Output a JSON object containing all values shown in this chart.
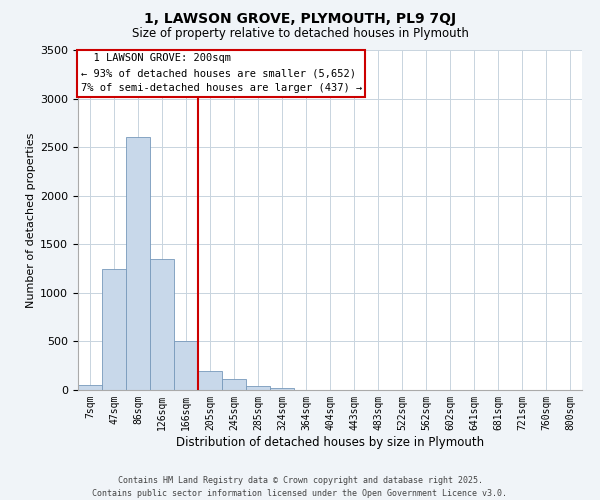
{
  "title_line1": "1, LAWSON GROVE, PLYMOUTH, PL9 7QJ",
  "title_line2": "Size of property relative to detached houses in Plymouth",
  "xlabel": "Distribution of detached houses by size in Plymouth",
  "ylabel": "Number of detached properties",
  "bin_labels": [
    "7sqm",
    "47sqm",
    "86sqm",
    "126sqm",
    "166sqm",
    "205sqm",
    "245sqm",
    "285sqm",
    "324sqm",
    "364sqm",
    "404sqm",
    "443sqm",
    "483sqm",
    "522sqm",
    "562sqm",
    "602sqm",
    "641sqm",
    "681sqm",
    "721sqm",
    "760sqm",
    "800sqm"
  ],
  "bin_values": [
    50,
    1250,
    2600,
    1350,
    500,
    200,
    110,
    40,
    20,
    0,
    0,
    0,
    0,
    0,
    0,
    0,
    0,
    0,
    0,
    0,
    0
  ],
  "bar_color": "#c8d8ea",
  "bar_edge_color": "#7799bb",
  "vline_color": "#cc0000",
  "vline_bin_edge": 5,
  "annotation_title": "1 LAWSON GROVE: 200sqm",
  "annotation_line1": "← 93% of detached houses are smaller (5,652)",
  "annotation_line2": "7% of semi-detached houses are larger (437) →",
  "annotation_box_color": "#ffffff",
  "annotation_box_edge": "#cc0000",
  "ylim": [
    0,
    3500
  ],
  "yticks": [
    0,
    500,
    1000,
    1500,
    2000,
    2500,
    3000,
    3500
  ],
  "background_color": "#f0f4f8",
  "plot_bg_color": "#ffffff",
  "grid_color": "#c8d4de",
  "footer_line1": "Contains HM Land Registry data © Crown copyright and database right 2025.",
  "footer_line2": "Contains public sector information licensed under the Open Government Licence v3.0."
}
